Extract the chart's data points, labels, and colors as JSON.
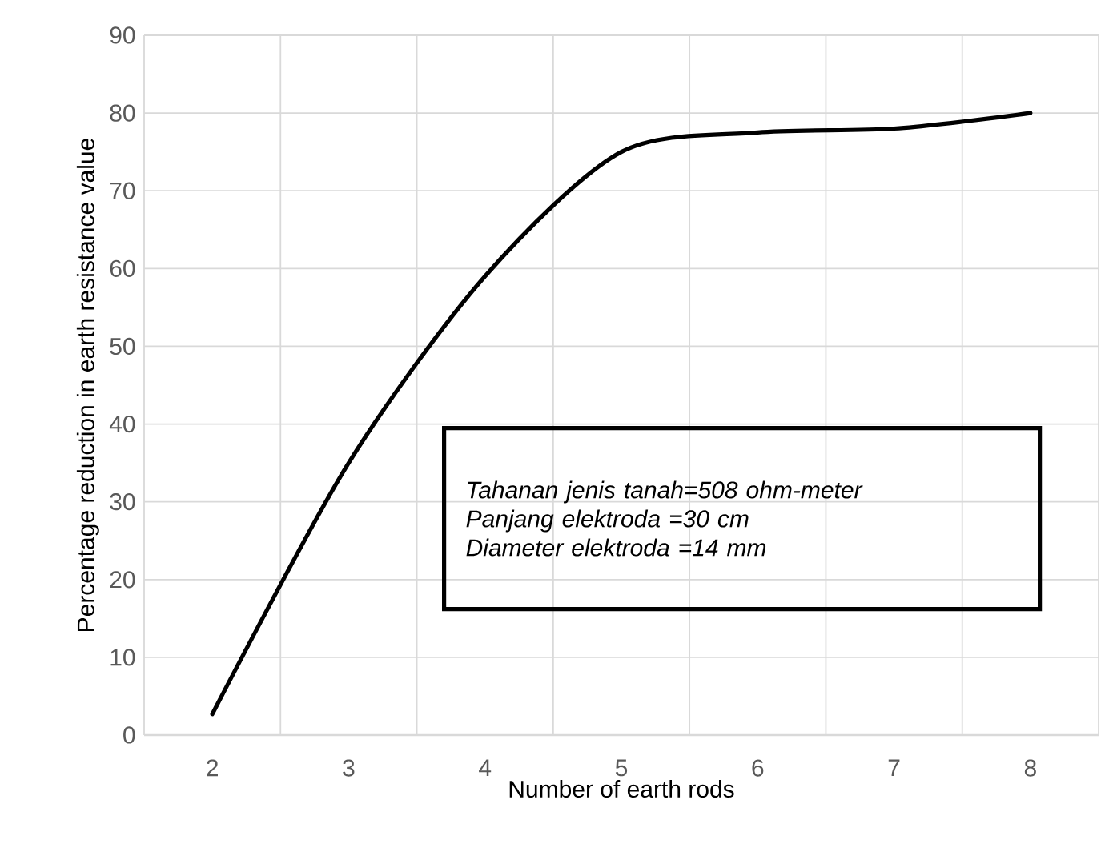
{
  "chart_data": {
    "type": "line",
    "xlabel": "Number of earth rods",
    "ylabel": "Percentage reduction in earth resistance value",
    "categories": [
      "2",
      "3",
      "4",
      "5",
      "6",
      "7",
      "8"
    ],
    "values": [
      2.7,
      35,
      59,
      75,
      77.5,
      78,
      80
    ],
    "color": "#000000",
    "ylim": [
      0,
      90
    ],
    "yticks": [
      0,
      10,
      20,
      30,
      40,
      50,
      60,
      70,
      80,
      90
    ],
    "grid": true,
    "annotations": [
      "Tahanan jenis tanah=508 ohm-meter",
      "Panjang elektroda =30 cm",
      "Diameter elektroda  =14 mm"
    ]
  }
}
